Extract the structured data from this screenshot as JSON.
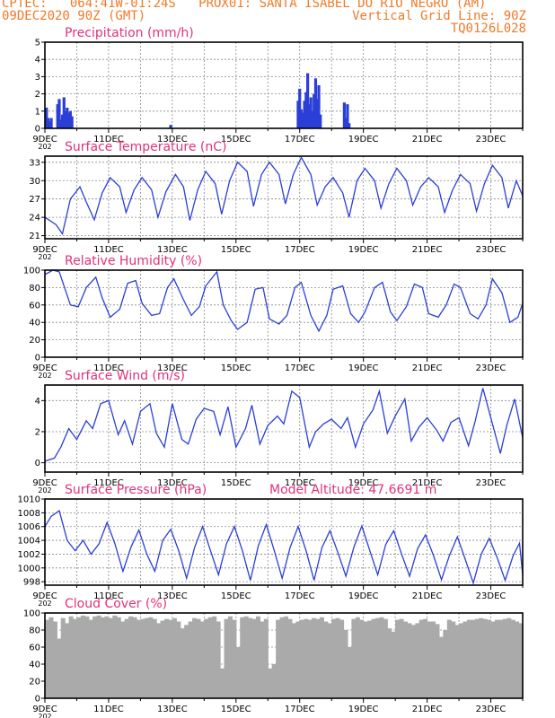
{
  "header": {
    "line1_left": "CPTEC:   064:41W-01:24S   PROX01: SANTA ISABEL DO RIO NEGRO (AM)",
    "line2_left": "09DEC2020 90Z (GMT)",
    "line2_right": "Vertical Grid Line: 90Z",
    "line3_right": "TQ0126L028"
  },
  "x_axis": {
    "labels": [
      "9DEC",
      "11DEC",
      "13DEC",
      "15DEC",
      "17DEC",
      "19DEC",
      "21DEC",
      "23DEC"
    ],
    "year_stub": "202",
    "start_day": 9,
    "end_day": 24,
    "label_every_days": 2
  },
  "colors": {
    "header": "#f07a2a",
    "title": "#e0327a",
    "line": "#2b3fd6",
    "cloud": "#aaaaaa",
    "grid": "#888888"
  },
  "chart_data": [
    {
      "id": "precip",
      "type": "bar",
      "title": "Precipitation (mm/h)",
      "subtitle": "",
      "ylim": [
        0,
        5
      ],
      "yticks": [
        0,
        1,
        2,
        3,
        4,
        5
      ],
      "grid": true,
      "x": [
        9.05,
        9.1,
        9.15,
        9.2,
        9.4,
        9.45,
        9.5,
        9.55,
        9.6,
        9.65,
        9.7,
        9.75,
        9.8,
        9.85,
        12.95,
        16.95,
        17.0,
        17.05,
        17.1,
        17.15,
        17.2,
        17.25,
        17.3,
        17.35,
        17.4,
        17.45,
        17.5,
        17.55,
        17.6,
        17.65,
        18.4,
        18.45,
        18.5,
        18.55
      ],
      "values": [
        1.2,
        0.6,
        0.4,
        0.6,
        1.4,
        1.7,
        0.5,
        0.8,
        1.8,
        1.0,
        1.2,
        0.9,
        1.0,
        0.7,
        0.2,
        1.6,
        2.3,
        1.1,
        0.9,
        1.6,
        2.1,
        3.2,
        1.4,
        1.8,
        1.0,
        2.0,
        2.9,
        1.7,
        2.5,
        0.8,
        1.5,
        0.6,
        1.4,
        0.3
      ]
    },
    {
      "id": "temp",
      "type": "line",
      "title": "Surface Temperature (nC)",
      "subtitle": "",
      "ylim": [
        20.5,
        34
      ],
      "yticks": [
        21,
        24,
        27,
        30,
        33
      ],
      "grid": true,
      "x": [
        9.0,
        9.35,
        9.55,
        9.8,
        10.1,
        10.3,
        10.55,
        10.8,
        11.05,
        11.35,
        11.55,
        11.8,
        12.05,
        12.35,
        12.55,
        12.8,
        13.1,
        13.35,
        13.55,
        13.8,
        14.05,
        14.35,
        14.55,
        14.8,
        15.05,
        15.35,
        15.55,
        15.8,
        16.05,
        16.35,
        16.55,
        16.8,
        17.05,
        17.35,
        17.55,
        17.8,
        18.05,
        18.35,
        18.55,
        18.8,
        19.05,
        19.35,
        19.55,
        19.8,
        20.05,
        20.35,
        20.55,
        20.8,
        21.05,
        21.35,
        21.55,
        21.8,
        22.05,
        22.35,
        22.55,
        22.8,
        23.05,
        23.35,
        23.55,
        23.8,
        24.0
      ],
      "values": [
        24.0,
        22.8,
        21.3,
        27.0,
        29.0,
        26.5,
        23.6,
        28.0,
        30.5,
        29.0,
        24.8,
        28.5,
        30.5,
        28.5,
        24.0,
        28.2,
        31.0,
        29.0,
        23.5,
        28.5,
        31.5,
        29.5,
        24.5,
        30.0,
        33.0,
        31.5,
        25.8,
        31.0,
        33.0,
        31.0,
        26.2,
        31.0,
        33.8,
        31.0,
        26.0,
        29.0,
        30.5,
        28.0,
        24.0,
        30.0,
        32.0,
        30.0,
        25.5,
        29.5,
        32.0,
        30.0,
        26.0,
        29.0,
        30.5,
        29.0,
        24.8,
        28.5,
        31.0,
        29.5,
        25.0,
        29.5,
        32.5,
        30.5,
        25.5,
        30.0,
        27.5
      ]
    },
    {
      "id": "rh",
      "type": "line",
      "title": "Relative Humidity (%)",
      "subtitle": "",
      "ylim": [
        0,
        100
      ],
      "yticks": [
        0,
        20,
        40,
        60,
        80,
        100
      ],
      "grid": true,
      "x": [
        9.0,
        9.25,
        9.45,
        9.8,
        10.05,
        10.3,
        10.6,
        10.8,
        11.05,
        11.35,
        11.6,
        11.85,
        12.05,
        12.35,
        12.6,
        12.85,
        13.05,
        13.35,
        13.6,
        13.85,
        14.05,
        14.4,
        14.6,
        14.85,
        15.05,
        15.35,
        15.6,
        15.85,
        16.05,
        16.35,
        16.6,
        16.85,
        17.05,
        17.35,
        17.6,
        17.85,
        18.05,
        18.35,
        18.6,
        18.85,
        19.05,
        19.35,
        19.6,
        19.85,
        20.05,
        20.35,
        20.6,
        20.85,
        21.05,
        21.35,
        21.6,
        21.85,
        22.05,
        22.35,
        22.6,
        22.85,
        23.05,
        23.35,
        23.6,
        23.85,
        24.0
      ],
      "values": [
        95,
        100,
        98,
        60,
        58,
        80,
        92,
        68,
        46,
        55,
        85,
        88,
        62,
        48,
        50,
        80,
        90,
        66,
        48,
        58,
        82,
        98,
        60,
        42,
        32,
        40,
        78,
        80,
        44,
        38,
        48,
        80,
        86,
        48,
        30,
        48,
        78,
        82,
        50,
        40,
        52,
        80,
        86,
        52,
        42,
        58,
        84,
        80,
        50,
        46,
        60,
        84,
        80,
        50,
        44,
        60,
        90,
        74,
        40,
        46,
        62
      ]
    },
    {
      "id": "wind",
      "type": "line",
      "title": "Surface Wind (m/s)",
      "subtitle": "",
      "ylim": [
        -0.6,
        5
      ],
      "yticks": [
        0,
        2,
        4
      ],
      "grid": true,
      "x": [
        9.0,
        9.3,
        9.5,
        9.75,
        10.0,
        10.3,
        10.5,
        10.75,
        11.0,
        11.3,
        11.5,
        11.75,
        12.0,
        12.3,
        12.5,
        12.75,
        13.0,
        13.3,
        13.5,
        13.75,
        14.0,
        14.3,
        14.5,
        14.75,
        15.0,
        15.3,
        15.5,
        15.75,
        16.0,
        16.3,
        16.5,
        16.75,
        17.0,
        17.3,
        17.5,
        17.75,
        18.0,
        18.3,
        18.5,
        18.75,
        19.0,
        19.3,
        19.5,
        19.75,
        20.0,
        20.3,
        20.5,
        20.75,
        21.0,
        21.3,
        21.5,
        21.75,
        22.0,
        22.3,
        22.5,
        22.75,
        23.0,
        23.3,
        23.5,
        23.75,
        24.0
      ],
      "values": [
        0.1,
        0.3,
        1.0,
        2.2,
        1.5,
        2.7,
        2.2,
        3.8,
        4.0,
        1.8,
        2.7,
        1.2,
        3.3,
        3.8,
        1.9,
        1.0,
        3.8,
        1.5,
        1.2,
        2.8,
        3.5,
        3.3,
        1.8,
        3.6,
        1.0,
        2.2,
        3.7,
        1.2,
        2.4,
        3.0,
        2.5,
        4.6,
        4.2,
        1.0,
        2.0,
        2.5,
        2.8,
        2.2,
        2.9,
        1.0,
        2.5,
        3.4,
        4.6,
        1.9,
        3.0,
        4.1,
        1.4,
        2.3,
        2.9,
        2.1,
        1.4,
        2.6,
        2.9,
        1.1,
        2.6,
        4.8,
        2.9,
        0.6,
        2.4,
        4.1,
        1.6
      ]
    },
    {
      "id": "pressure",
      "type": "line",
      "title": "Surface Pressure (hPa)",
      "subtitle": "Model Altitude: 47.6691 m",
      "ylim": [
        997.5,
        1010
      ],
      "yticks": [
        998,
        1000,
        1002,
        1004,
        1006,
        1008,
        1010
      ],
      "grid": true,
      "x": [
        9.0,
        9.2,
        9.45,
        9.7,
        9.95,
        10.2,
        10.45,
        10.7,
        10.95,
        11.2,
        11.45,
        11.7,
        11.95,
        12.2,
        12.45,
        12.7,
        12.95,
        13.2,
        13.45,
        13.7,
        13.95,
        14.2,
        14.45,
        14.7,
        14.95,
        15.2,
        15.45,
        15.7,
        15.95,
        16.2,
        16.45,
        16.7,
        16.95,
        17.2,
        17.45,
        17.7,
        17.95,
        18.2,
        18.45,
        18.7,
        18.95,
        19.2,
        19.45,
        19.7,
        19.95,
        20.2,
        20.45,
        20.7,
        20.95,
        21.2,
        21.45,
        21.7,
        21.95,
        22.2,
        22.45,
        22.7,
        22.95,
        23.2,
        23.45,
        23.7,
        23.9,
        24.0
      ],
      "values": [
        1006.0,
        1007.5,
        1008.3,
        1004.0,
        1002.5,
        1004.0,
        1002.0,
        1003.5,
        1006.6,
        1003.5,
        999.5,
        1003.0,
        1005.5,
        1002.0,
        999.5,
        1004.0,
        1005.6,
        1002.5,
        998.5,
        1003.0,
        1006.0,
        1002.5,
        999.0,
        1003.5,
        1006.0,
        1002.5,
        998.2,
        1003.2,
        1006.3,
        1002.5,
        998.5,
        1003.0,
        1006.0,
        1002.5,
        998.2,
        1003.0,
        1005.4,
        1002.2,
        998.8,
        1003.0,
        1006.1,
        1002.5,
        999.0,
        1003.4,
        1005.4,
        1002.0,
        998.8,
        1002.8,
        1004.8,
        1001.8,
        998.3,
        1001.8,
        1004.5,
        1001.2,
        997.8,
        1002.0,
        1004.3,
        1001.5,
        998.2,
        1001.8,
        1003.6,
        999.0
      ]
    },
    {
      "id": "cloud",
      "type": "bar",
      "title": "Cloud Cover (%)",
      "subtitle": "",
      "ylim": [
        0,
        100
      ],
      "yticks": [
        0,
        20,
        40,
        60,
        80,
        100
      ],
      "grid": true,
      "x": [
        9.0,
        9.125,
        9.25,
        9.375,
        9.5,
        9.625,
        9.75,
        9.875,
        10.0,
        10.125,
        10.25,
        10.375,
        10.5,
        10.625,
        10.75,
        10.875,
        11.0,
        11.125,
        11.25,
        11.375,
        11.5,
        11.625,
        11.75,
        11.875,
        12.0,
        12.125,
        12.25,
        12.375,
        12.5,
        12.625,
        12.75,
        12.875,
        13.0,
        13.125,
        13.25,
        13.375,
        13.5,
        13.625,
        13.75,
        13.875,
        14.0,
        14.125,
        14.25,
        14.375,
        14.5,
        14.625,
        14.75,
        14.875,
        15.0,
        15.125,
        15.25,
        15.375,
        15.5,
        15.625,
        15.75,
        15.875,
        16.0,
        16.125,
        16.25,
        16.375,
        16.5,
        16.625,
        16.75,
        16.875,
        17.0,
        17.125,
        17.25,
        17.375,
        17.5,
        17.625,
        17.75,
        17.875,
        18.0,
        18.125,
        18.25,
        18.375,
        18.5,
        18.625,
        18.75,
        18.875,
        19.0,
        19.125,
        19.25,
        19.375,
        19.5,
        19.625,
        19.75,
        19.875,
        20.0,
        20.125,
        20.25,
        20.375,
        20.5,
        20.625,
        20.75,
        20.875,
        21.0,
        21.125,
        21.25,
        21.375,
        21.5,
        21.625,
        21.75,
        21.875,
        22.0,
        22.125,
        22.25,
        22.375,
        22.5,
        22.625,
        22.75,
        22.875,
        23.0,
        23.125,
        23.25,
        23.375,
        23.5,
        23.625,
        23.75,
        23.875
      ],
      "values": [
        92,
        95,
        90,
        70,
        94,
        88,
        96,
        93,
        95,
        97,
        96,
        92,
        96,
        97,
        95,
        96,
        94,
        97,
        95,
        90,
        93,
        96,
        95,
        92,
        93,
        94,
        95,
        93,
        88,
        91,
        93,
        92,
        94,
        90,
        82,
        86,
        90,
        94,
        93,
        90,
        93,
        95,
        96,
        90,
        35,
        93,
        96,
        92,
        60,
        95,
        96,
        94,
        93,
        96,
        90,
        93,
        35,
        40,
        92,
        95,
        96,
        93,
        88,
        90,
        92,
        93,
        92,
        94,
        93,
        95,
        90,
        88,
        93,
        94,
        92,
        80,
        60,
        93,
        95,
        92,
        90,
        91,
        93,
        94,
        95,
        93,
        82,
        78,
        92,
        93,
        90,
        88,
        86,
        88,
        92,
        93,
        90,
        90,
        87,
        72,
        80,
        92,
        90,
        86,
        88,
        90,
        92,
        92,
        93,
        94,
        93,
        92,
        90,
        92,
        92,
        93,
        94,
        92,
        90,
        88
      ]
    }
  ]
}
